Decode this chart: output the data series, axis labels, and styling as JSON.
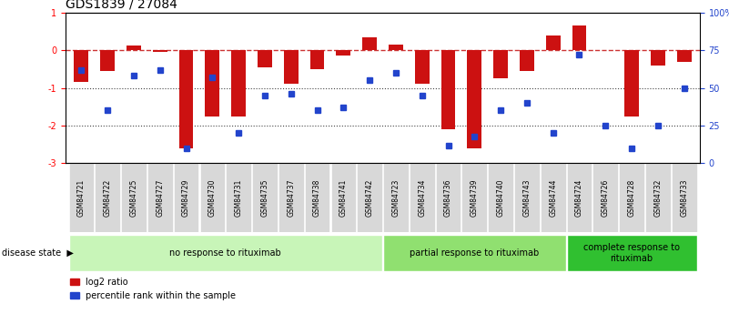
{
  "title": "GDS1839 / 27084",
  "samples": [
    "GSM84721",
    "GSM84722",
    "GSM84725",
    "GSM84727",
    "GSM84729",
    "GSM84730",
    "GSM84731",
    "GSM84735",
    "GSM84737",
    "GSM84738",
    "GSM84741",
    "GSM84742",
    "GSM84723",
    "GSM84734",
    "GSM84736",
    "GSM84739",
    "GSM84740",
    "GSM84743",
    "GSM84744",
    "GSM84724",
    "GSM84726",
    "GSM84728",
    "GSM84732",
    "GSM84733"
  ],
  "log2_ratio": [
    -0.85,
    -0.55,
    0.12,
    -0.05,
    -2.6,
    -1.75,
    -1.75,
    -0.45,
    -0.9,
    -0.5,
    -0.15,
    0.35,
    0.15,
    -0.9,
    -2.1,
    -2.6,
    -0.75,
    -0.55,
    0.4,
    0.65,
    0.0,
    -1.75,
    -0.4,
    -0.3
  ],
  "percentile_rank": [
    62,
    35,
    58,
    62,
    10,
    57,
    20,
    45,
    46,
    35,
    37,
    55,
    60,
    45,
    12,
    18,
    35,
    40,
    20,
    72,
    25,
    10,
    25,
    50
  ],
  "groups": [
    {
      "label": "no response to rituximab",
      "start": 0,
      "end": 12,
      "color": "#c8f5b8"
    },
    {
      "label": "partial response to rituximab",
      "start": 12,
      "end": 19,
      "color": "#90e070"
    },
    {
      "label": "complete response to\nrituximab",
      "start": 19,
      "end": 24,
      "color": "#30c030"
    }
  ],
  "ylim": [
    -3.0,
    1.0
  ],
  "y2lim": [
    0,
    100
  ],
  "bar_color": "#cc1111",
  "dot_color": "#2244cc",
  "hline_color": "#cc3333",
  "dotted_line_color": "#444444",
  "title_fontsize": 10,
  "tick_fontsize": 7,
  "sample_fontsize": 5.5,
  "group_fontsize": 7,
  "legend_fontsize": 7
}
